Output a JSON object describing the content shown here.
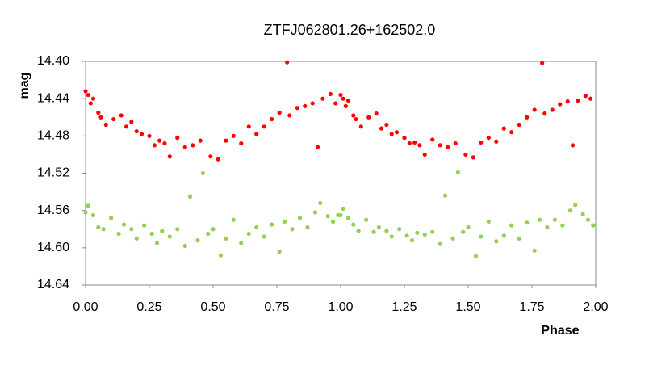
{
  "chart_data": {
    "type": "scatter",
    "title": "ZTFJ062801.26+162502.0",
    "xlabel": "Phase",
    "ylabel": "mag",
    "xlim": [
      0,
      2
    ],
    "xticks": [
      {
        "value": 0,
        "label": "0.00"
      },
      0.25,
      {
        "value": 0.5,
        "label": "0.50"
      },
      0.75,
      {
        "value": 1,
        "label": "1.00"
      },
      1.25,
      {
        "value": 1.5,
        "label": "1.50"
      },
      1.75,
      {
        "value": 2,
        "label": "2.00"
      }
    ],
    "ylim": [
      14.64,
      14.4
    ],
    "yticks": [
      {
        "value": 14.4,
        "label": "14.40"
      },
      14.44,
      14.48,
      14.52,
      14.56,
      {
        "value": 14.6,
        "label": "14.60"
      },
      14.64
    ],
    "series": [
      {
        "color": "#ff0000",
        "x": [
          0.0,
          0.01,
          0.02,
          0.03,
          0.05,
          0.06,
          0.08,
          0.11,
          0.14,
          0.16,
          0.18,
          0.2,
          0.22,
          0.25,
          0.27,
          0.29,
          0.31,
          0.33,
          0.36,
          0.39,
          0.42,
          0.45,
          0.49,
          0.52,
          0.55,
          0.58,
          0.61,
          0.64,
          0.67,
          0.7,
          0.73,
          0.76,
          0.79,
          0.8,
          0.83,
          0.86,
          0.89,
          0.91,
          0.93,
          0.96,
          0.98,
          1.0,
          1.01,
          1.02,
          1.03,
          1.05,
          1.06,
          1.08,
          1.11,
          1.14,
          1.16,
          1.18,
          1.2,
          1.22,
          1.25,
          1.27,
          1.29,
          1.31,
          1.33,
          1.36,
          1.39,
          1.42,
          1.45,
          1.49,
          1.52,
          1.55,
          1.58,
          1.61,
          1.64,
          1.67,
          1.7,
          1.73,
          1.76,
          1.79,
          1.8,
          1.83,
          1.86,
          1.89,
          1.91,
          1.93,
          1.96,
          1.98
        ],
        "values": [
          14.432,
          14.436,
          14.445,
          14.44,
          14.455,
          14.46,
          14.468,
          14.462,
          14.458,
          14.47,
          14.465,
          14.475,
          14.478,
          14.48,
          14.49,
          14.485,
          14.488,
          14.502,
          14.482,
          14.492,
          14.49,
          14.485,
          14.502,
          14.505,
          14.485,
          14.48,
          14.488,
          14.47,
          14.478,
          14.47,
          14.462,
          14.455,
          14.401,
          14.458,
          14.45,
          14.448,
          14.445,
          14.492,
          14.44,
          14.435,
          14.445,
          14.436,
          14.44,
          14.448,
          14.442,
          14.458,
          14.462,
          14.47,
          14.46,
          14.456,
          14.472,
          14.468,
          14.478,
          14.476,
          14.482,
          14.488,
          14.487,
          14.49,
          14.5,
          14.484,
          14.49,
          14.492,
          14.488,
          14.5,
          14.503,
          14.487,
          14.482,
          14.486,
          14.472,
          14.476,
          14.468,
          14.46,
          14.452,
          14.402,
          14.456,
          14.452,
          14.446,
          14.443,
          14.49,
          14.442,
          14.437,
          14.44
        ]
      },
      {
        "color": "#92d050",
        "x": [
          0.0,
          0.01,
          0.03,
          0.05,
          0.07,
          0.1,
          0.13,
          0.15,
          0.18,
          0.2,
          0.23,
          0.26,
          0.28,
          0.3,
          0.33,
          0.36,
          0.39,
          0.41,
          0.44,
          0.46,
          0.48,
          0.5,
          0.53,
          0.55,
          0.58,
          0.61,
          0.64,
          0.67,
          0.7,
          0.73,
          0.76,
          0.78,
          0.81,
          0.84,
          0.87,
          0.9,
          0.92,
          0.95,
          0.97,
          0.99,
          1.0,
          1.01,
          1.03,
          1.05,
          1.07,
          1.1,
          1.13,
          1.15,
          1.18,
          1.2,
          1.23,
          1.26,
          1.28,
          1.3,
          1.33,
          1.36,
          1.39,
          1.41,
          1.44,
          1.46,
          1.48,
          1.5,
          1.53,
          1.55,
          1.58,
          1.61,
          1.64,
          1.67,
          1.7,
          1.73,
          1.76,
          1.78,
          1.81,
          1.84,
          1.87,
          1.9,
          1.92,
          1.95,
          1.97,
          1.99
        ],
        "values": [
          14.562,
          14.555,
          14.565,
          14.578,
          14.58,
          14.568,
          14.585,
          14.575,
          14.58,
          14.59,
          14.576,
          14.585,
          14.595,
          14.582,
          14.588,
          14.58,
          14.598,
          14.545,
          14.592,
          14.52,
          14.585,
          14.58,
          14.608,
          14.59,
          14.57,
          14.595,
          14.585,
          14.578,
          14.588,
          14.575,
          14.604,
          14.572,
          14.58,
          14.568,
          14.578,
          14.562,
          14.552,
          14.566,
          14.572,
          14.565,
          14.565,
          14.558,
          14.568,
          14.575,
          14.582,
          14.57,
          14.583,
          14.578,
          14.582,
          14.588,
          14.58,
          14.587,
          14.592,
          14.584,
          14.586,
          14.583,
          14.596,
          14.544,
          14.59,
          14.519,
          14.583,
          14.578,
          14.609,
          14.588,
          14.572,
          14.593,
          14.587,
          14.576,
          14.59,
          14.573,
          14.603,
          14.57,
          14.578,
          14.57,
          14.576,
          14.56,
          14.554,
          14.564,
          14.57,
          14.576
        ]
      }
    ]
  }
}
